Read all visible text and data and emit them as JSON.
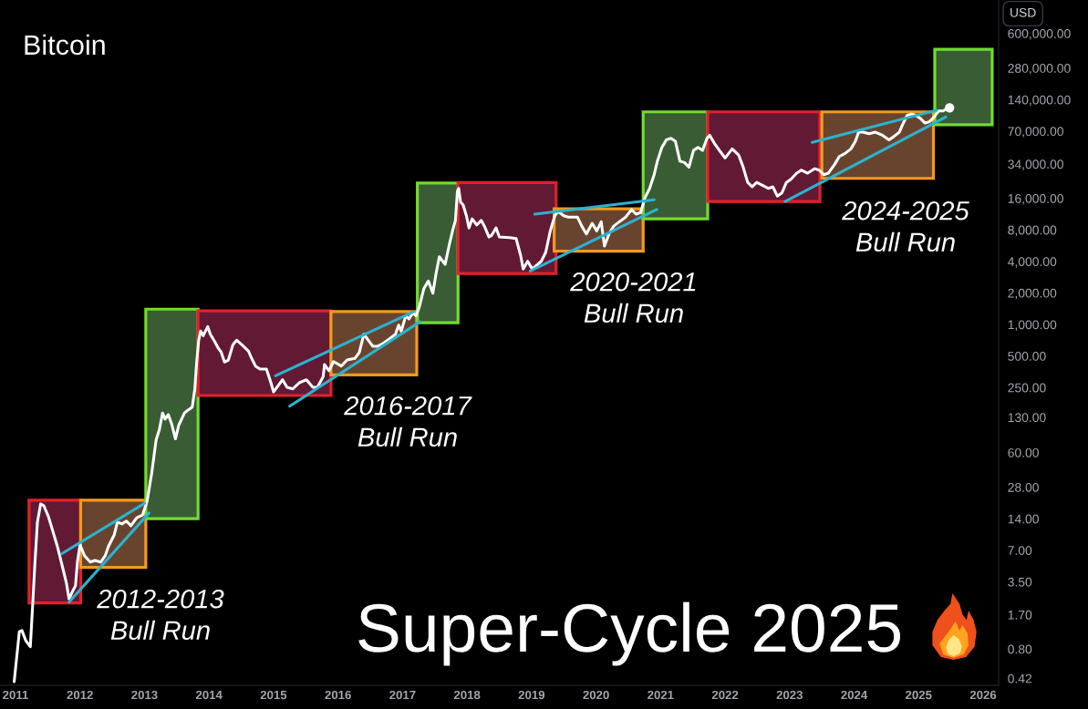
{
  "chart_data": {
    "type": "line",
    "title": "Bitcoin",
    "ylabel": "USD",
    "log": true,
    "xlim": [
      2010.76,
      2026.24
    ],
    "ylim": [
      0.36,
      1250000
    ],
    "xticks": [
      2011,
      2012,
      2013,
      2014,
      2015,
      2016,
      2017,
      2018,
      2019,
      2020,
      2021,
      2022,
      2023,
      2024,
      2025,
      2026
    ],
    "yticks": [
      {
        "value": 0.42,
        "label": "0.42"
      },
      {
        "value": 0.8,
        "label": "0.80"
      },
      {
        "value": 1.7,
        "label": "1.70"
      },
      {
        "value": 3.5,
        "label": "3.50"
      },
      {
        "value": 7,
        "label": "7.00"
      },
      {
        "value": 14,
        "label": "14.00"
      },
      {
        "value": 28,
        "label": "28.00"
      },
      {
        "value": 60,
        "label": "60.00"
      },
      {
        "value": 130,
        "label": "130.00"
      },
      {
        "value": 250,
        "label": "250.00"
      },
      {
        "value": 500,
        "label": "500.00"
      },
      {
        "value": 1000,
        "label": "1,000.00"
      },
      {
        "value": 2000,
        "label": "2,000.00"
      },
      {
        "value": 4000,
        "label": "4,000.00"
      },
      {
        "value": 8000,
        "label": "8,000.00"
      },
      {
        "value": 16000,
        "label": "16,000.00"
      },
      {
        "value": 34000,
        "label": "34,000.00"
      },
      {
        "value": 70000,
        "label": "70,000.00"
      },
      {
        "value": 140000,
        "label": "140,000.00"
      },
      {
        "value": 280000,
        "label": "280,000.00"
      },
      {
        "value": 600000,
        "label": "600,000.00"
      }
    ],
    "annotations": [
      "2012-2013\nBull Run",
      "2016-2017\nBull Run",
      "2020-2021\nBull Run",
      "2024-2025\nBull Run",
      "Super-Cycle 2025"
    ],
    "series": [
      {
        "type": "area",
        "x": [
          2011.21,
          2011.21,
          2012.01,
          2012.01
        ],
        "values": [
          2.2,
          21,
          21,
          2.2
        ],
        "color": "#e3202c"
      },
      {
        "type": "area",
        "x": [
          2012.01,
          2012.01,
          2013.02,
          2013.02
        ],
        "values": [
          4.8,
          21,
          21,
          4.8
        ],
        "color": "#f39a1e"
      },
      {
        "type": "area",
        "x": [
          2013.02,
          2013.02,
          2013.83,
          2013.83
        ],
        "values": [
          14,
          1400,
          1400,
          14
        ],
        "color": "#72dc2c"
      },
      {
        "type": "area",
        "x": [
          2013.83,
          2013.83,
          2015.89,
          2015.89
        ],
        "values": [
          210,
          1350,
          1350,
          210
        ],
        "color": "#e3202c"
      },
      {
        "type": "area",
        "x": [
          2015.89,
          2015.89,
          2017.22,
          2017.22
        ],
        "values": [
          330,
          1330,
          1330,
          330
        ],
        "color": "#f39a1e"
      },
      {
        "type": "area",
        "x": [
          2017.23,
          2017.23,
          2017.86,
          2017.86
        ],
        "values": [
          1040,
          22400,
          22400,
          1040
        ],
        "color": "#72dc2c"
      },
      {
        "type": "area",
        "x": [
          2017.86,
          2017.86,
          2019.38,
          2019.38
        ],
        "values": [
          3070,
          22600,
          22600,
          3070
        ],
        "color": "#e3202c"
      },
      {
        "type": "area",
        "x": [
          2019.35,
          2019.35,
          2020.73,
          2020.73
        ],
        "values": [
          5000,
          12700,
          12700,
          5000
        ],
        "color": "#f39a1e"
      },
      {
        "type": "area",
        "x": [
          2020.73,
          2020.73,
          2021.73,
          2021.73
        ],
        "values": [
          10200,
          107000,
          107000,
          10200
        ],
        "color": "#72dc2c"
      },
      {
        "type": "area",
        "x": [
          2021.73,
          2021.73,
          2023.47,
          2023.47
        ],
        "values": [
          14900,
          107000,
          107000,
          14900
        ],
        "color": "#e3202c"
      },
      {
        "type": "area",
        "x": [
          2023.5,
          2023.5,
          2025.23,
          2025.23
        ],
        "values": [
          24800,
          107000,
          107000,
          24800
        ],
        "color": "#f39a1e"
      },
      {
        "type": "area",
        "x": [
          2025.25,
          2025.25,
          2026.14,
          2026.14
        ],
        "values": [
          80700,
          423000,
          423000,
          80700
        ],
        "color": "#72dc2c"
      },
      {
        "color": "#ffffff",
        "x": [
          2010.98,
          2011.06,
          2011.1,
          2011.16,
          2011.23,
          2011.27,
          2011.3,
          2011.34,
          2011.39,
          2011.44,
          2011.51,
          2011.58,
          2011.65,
          2011.72,
          2011.79,
          2011.83,
          2011.88,
          2011.93,
          2011.96,
          2012.0,
          2012.07,
          2012.16,
          2012.23,
          2012.32,
          2012.39,
          2012.44,
          2012.53,
          2012.58,
          2012.65,
          2012.72,
          2012.79,
          2012.88,
          2012.97,
          2013.04,
          2013.11,
          2013.18,
          2013.23,
          2013.28,
          2013.32,
          2013.37,
          2013.42,
          2013.48,
          2013.53,
          2013.62,
          2013.67,
          2013.74,
          2013.78,
          2013.81,
          2013.84,
          2013.87,
          2013.91,
          2013.98,
          2014.02,
          2014.09,
          2014.14,
          2014.19,
          2014.24,
          2014.3,
          2014.37,
          2014.43,
          2014.51,
          2014.61,
          2014.65,
          2014.72,
          2014.79,
          2014.89,
          2014.96,
          2015.0,
          2015.07,
          2015.14,
          2015.21,
          2015.3,
          2015.4,
          2015.51,
          2015.61,
          2015.68,
          2015.77,
          2015.79,
          2015.86,
          2015.93,
          2016.05,
          2016.14,
          2016.26,
          2016.33,
          2016.4,
          2016.47,
          2016.54,
          2016.61,
          2016.7,
          2016.8,
          2016.89,
          2016.94,
          2016.98,
          2017.05,
          2017.1,
          2017.16,
          2017.21,
          2017.26,
          2017.33,
          2017.4,
          2017.47,
          2017.52,
          2017.57,
          2017.66,
          2017.72,
          2017.78,
          2017.82,
          2017.85,
          2017.87,
          2017.9,
          2017.94,
          2017.99,
          2018.03,
          2018.08,
          2018.15,
          2018.22,
          2018.27,
          2018.34,
          2018.38,
          2018.45,
          2018.5,
          2018.66,
          2018.76,
          2018.83,
          2018.87,
          2018.94,
          2019.01,
          2019.15,
          2019.22,
          2019.29,
          2019.36,
          2019.41,
          2019.5,
          2019.57,
          2019.71,
          2019.78,
          2019.85,
          2019.94,
          2020.01,
          2020.08,
          2020.13,
          2020.2,
          2020.27,
          2020.36,
          2020.46,
          2020.55,
          2020.62,
          2020.69,
          2020.76,
          2020.83,
          2020.9,
          2020.95,
          2021.02,
          2021.09,
          2021.16,
          2021.23,
          2021.3,
          2021.37,
          2021.44,
          2021.51,
          2021.58,
          2021.65,
          2021.72,
          2021.76,
          2021.83,
          2021.93,
          2022.0,
          2022.11,
          2022.21,
          2022.28,
          2022.35,
          2022.42,
          2022.49,
          2022.58,
          2022.67,
          2022.74,
          2022.81,
          2022.88,
          2022.95,
          2023.02,
          2023.11,
          2023.18,
          2023.28,
          2023.39,
          2023.46,
          2023.53,
          2023.6,
          2023.7,
          2023.77,
          2023.86,
          2023.95,
          2024.02,
          2024.07,
          2024.14,
          2024.23,
          2024.33,
          2024.44,
          2024.54,
          2024.61,
          2024.7,
          2024.75,
          2024.82,
          2024.89,
          2024.96,
          2025.03,
          2025.1,
          2025.17,
          2025.24,
          2025.31,
          2025.38,
          2025.42,
          2025.48
        ],
        "values": [
          0.39,
          1.17,
          1.2,
          0.96,
          0.84,
          2.3,
          5.1,
          13,
          19.4,
          18.6,
          14.7,
          10.6,
          7.6,
          5.1,
          3.4,
          2.4,
          2.8,
          3.2,
          5.4,
          7.9,
          6.2,
          5.4,
          5.6,
          5.4,
          6.2,
          7.6,
          9.8,
          13,
          12.5,
          13.3,
          12,
          14.3,
          15.2,
          20.6,
          37.5,
          79,
          99,
          143,
          125,
          138,
          113,
          81,
          109,
          143,
          152,
          163,
          243,
          443,
          708,
          864,
          782,
          955,
          807,
          684,
          598,
          541,
          438,
          458,
          640,
          708,
          640,
          560,
          490,
          401,
          375,
          375,
          278,
          227,
          260,
          297,
          251,
          243,
          278,
          297,
          251,
          251,
          318,
          415,
          362,
          443,
          401,
          458,
          474,
          541,
          807,
          708,
          618,
          618,
          661,
          730,
          807,
          986,
          864,
          1210,
          1130,
          1290,
          1210,
          1470,
          2200,
          2600,
          1990,
          3070,
          4430,
          3750,
          5600,
          8070,
          9860,
          18600,
          19900,
          14700,
          13800,
          10900,
          8350,
          10200,
          8910,
          9860,
          8640,
          6840,
          7080,
          8350,
          6840,
          6750,
          6610,
          4580,
          3390,
          4010,
          3390,
          4010,
          4900,
          7820,
          10900,
          12000,
          10900,
          10600,
          10600,
          8640,
          7310,
          9230,
          7820,
          9550,
          5600,
          7310,
          8640,
          9550,
          10600,
          12500,
          11300,
          11700,
          16300,
          19900,
          26900,
          36200,
          49000,
          57900,
          59800,
          56000,
          36200,
          35100,
          31800,
          45800,
          49000,
          45800,
          59800,
          64000,
          54100,
          44300,
          38800,
          47400,
          41400,
          31800,
          22700,
          20600,
          22700,
          21300,
          19900,
          20600,
          16800,
          18000,
          22700,
          24300,
          27800,
          29700,
          27800,
          30700,
          29700,
          26900,
          27800,
          33900,
          40100,
          42900,
          47400,
          56000,
          68400,
          68400,
          66100,
          68400,
          64000,
          57900,
          61800,
          68400,
          80700,
          98600,
          102000,
          98600,
          92300,
          83600,
          86400,
          95500,
          109000,
          109000,
          113000,
          117000
        ]
      },
      {
        "type": "line",
        "x": [
          2011.72,
          2013.0
        ],
        "values": [
          6.5,
          19.6
        ],
        "color": "#2bb3d0"
      },
      {
        "type": "line",
        "x": [
          2011.83,
          2013.07
        ],
        "values": [
          2.24,
          15.9
        ],
        "color": "#2bb3d0"
      },
      {
        "type": "line",
        "x": [
          2015.03,
          2017.17
        ],
        "values": [
          324,
          1320
        ],
        "color": "#2bb3d0"
      },
      {
        "type": "line",
        "x": [
          2015.25,
          2017.27
        ],
        "values": [
          166,
          1060
        ],
        "color": "#2bb3d0"
      },
      {
        "type": "line",
        "x": [
          2019.05,
          2020.9
        ],
        "values": [
          11300,
          15500
        ],
        "color": "#2bb3d0"
      },
      {
        "type": "line",
        "x": [
          2018.98,
          2020.94
        ],
        "values": [
          3240,
          12500
        ],
        "color": "#2bb3d0"
      },
      {
        "type": "line",
        "x": [
          2023.35,
          2025.28
        ],
        "values": [
          54800,
          111000
        ],
        "color": "#2bb3d0"
      },
      {
        "type": "line",
        "x": [
          2022.93,
          2025.42
        ],
        "values": [
          14900,
          95500
        ],
        "color": "#2bb3d0"
      },
      {
        "type": "scatter",
        "x": [
          2025.48
        ],
        "values": [
          117000
        ],
        "color": "#ffffff"
      }
    ]
  }
}
